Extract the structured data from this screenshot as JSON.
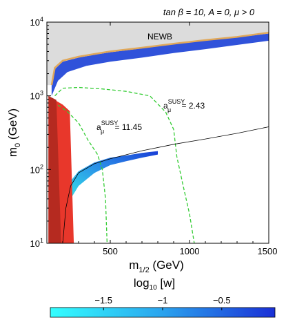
{
  "chart_data": {
    "type": "scatter",
    "title": "tan β = 10, A = 0, μ > 0",
    "xlabel": "m",
    "xlabel_sub": "1/2",
    "xlabel_unit": " (GeV)",
    "ylabel": "m",
    "ylabel_sub": "0",
    "ylabel_unit": " (GeV)",
    "xlim": [
      100,
      1500
    ],
    "ylim": [
      10,
      10000
    ],
    "y_scale": "log",
    "x_ticks": [
      "500",
      "1000",
      "1500"
    ],
    "x_tick_values": [
      500,
      1000,
      1500
    ],
    "y_ticks": [
      {
        "base": "10",
        "exp": "1",
        "value": 10
      },
      {
        "base": "10",
        "exp": "2",
        "value": 100
      },
      {
        "base": "10",
        "exp": "3",
        "value": 1000
      },
      {
        "base": "10",
        "exp": "4",
        "value": 10000
      }
    ],
    "colors": {
      "newb_region": "#dcdcdc",
      "newb_boundary": "#e0a85a",
      "excluded_red": "#e8372b",
      "excluded_dark_red": "#b52a20",
      "g2_contours": "#33cc33",
      "black_curve": "#000000",
      "points_low": "#33e0e8",
      "points_high": "#1a3fd6"
    },
    "annotations": {
      "newb": "NEWB",
      "a1_base": "a",
      "a1_sub": "μ",
      "a1_sup": "SUSY",
      "a1_value": " = 2.43",
      "a2_base": "a",
      "a2_sub": "μ",
      "a2_sup": "SUSY",
      "a2_value": " = 11.45"
    },
    "regions": {
      "newb_boundary": [
        [
          130,
          1400
        ],
        [
          150,
          2400
        ],
        [
          200,
          3000
        ],
        [
          300,
          3400
        ],
        [
          400,
          3700
        ],
        [
          500,
          4000
        ],
        [
          700,
          4500
        ],
        [
          900,
          5100
        ],
        [
          1100,
          5700
        ],
        [
          1300,
          6300
        ],
        [
          1500,
          7200
        ]
      ],
      "red_excluded": [
        [
          110,
          10
        ],
        [
          110,
          1000
        ],
        [
          150,
          880
        ],
        [
          200,
          760
        ],
        [
          245,
          620
        ],
        [
          270,
          10
        ]
      ],
      "dark_red_excluded": [
        [
          110,
          10
        ],
        [
          110,
          1000
        ],
        [
          160,
          880
        ],
        [
          190,
          10
        ]
      ]
    },
    "contours": [
      {
        "label": "a_mu = 2.43",
        "style": "dashed",
        "points": [
          [
            150,
            1000
          ],
          [
            200,
            1270
          ],
          [
            300,
            1300
          ],
          [
            450,
            1240
          ],
          [
            600,
            1150
          ],
          [
            750,
            1000
          ],
          [
            850,
            600
          ],
          [
            900,
            350
          ],
          [
            920,
            150
          ],
          [
            960,
            60
          ],
          [
            1000,
            25
          ],
          [
            1030,
            10
          ]
        ]
      },
      {
        "label": "a_mu = 11.45",
        "style": "dashed",
        "points": [
          [
            170,
            750
          ],
          [
            230,
            610
          ],
          [
            300,
            430
          ],
          [
            360,
            250
          ],
          [
            420,
            160
          ],
          [
            450,
            100
          ],
          [
            470,
            40
          ],
          [
            480,
            10
          ]
        ]
      }
    ],
    "black_curve": [
      [
        200,
        10
      ],
      [
        220,
        30
      ],
      [
        250,
        60
      ],
      [
        300,
        90
      ],
      [
        400,
        120
      ],
      [
        500,
        140
      ],
      [
        700,
        180
      ],
      [
        900,
        220
      ],
      [
        1100,
        260
      ],
      [
        1300,
        310
      ],
      [
        1500,
        380
      ]
    ],
    "point_bands": [
      {
        "lower": [
          [
            130,
            1000
          ],
          [
            170,
            1600
          ],
          [
            230,
            2100
          ],
          [
            350,
            2550
          ],
          [
            500,
            2900
          ],
          [
            700,
            3300
          ],
          [
            900,
            3800
          ],
          [
            1100,
            4300
          ],
          [
            1300,
            4900
          ],
          [
            1500,
            5600
          ]
        ],
        "upper": [
          [
            130,
            1400
          ],
          [
            150,
            2300
          ],
          [
            200,
            2900
          ],
          [
            300,
            3300
          ],
          [
            400,
            3600
          ],
          [
            500,
            3900
          ],
          [
            700,
            4400
          ],
          [
            900,
            5000
          ],
          [
            1100,
            5600
          ],
          [
            1300,
            6200
          ],
          [
            1500,
            7000
          ]
        ],
        "log10_w": [
          -0.3,
          -0.5,
          -0.7
        ]
      },
      {
        "lower": [
          [
            250,
            40
          ],
          [
            300,
            60
          ],
          [
            400,
            90
          ],
          [
            500,
            115
          ],
          [
            600,
            130
          ],
          [
            700,
            145
          ],
          [
            800,
            160
          ]
        ],
        "upper": [
          [
            250,
            70
          ],
          [
            300,
            95
          ],
          [
            400,
            125
          ],
          [
            500,
            145
          ],
          [
            600,
            155
          ],
          [
            700,
            168
          ],
          [
            800,
            178
          ]
        ],
        "log10_w": [
          -1.4,
          -0.9,
          -0.4
        ]
      }
    ],
    "colorbar": {
      "label": "log",
      "label_sub": "10",
      "label_rest": " [w]",
      "range": [
        -1.95,
        -0.05
      ],
      "ticks": [
        "−1.5",
        "−1",
        "−0.5"
      ],
      "tick_values": [
        -1.5,
        -1,
        -0.5
      ]
    }
  }
}
